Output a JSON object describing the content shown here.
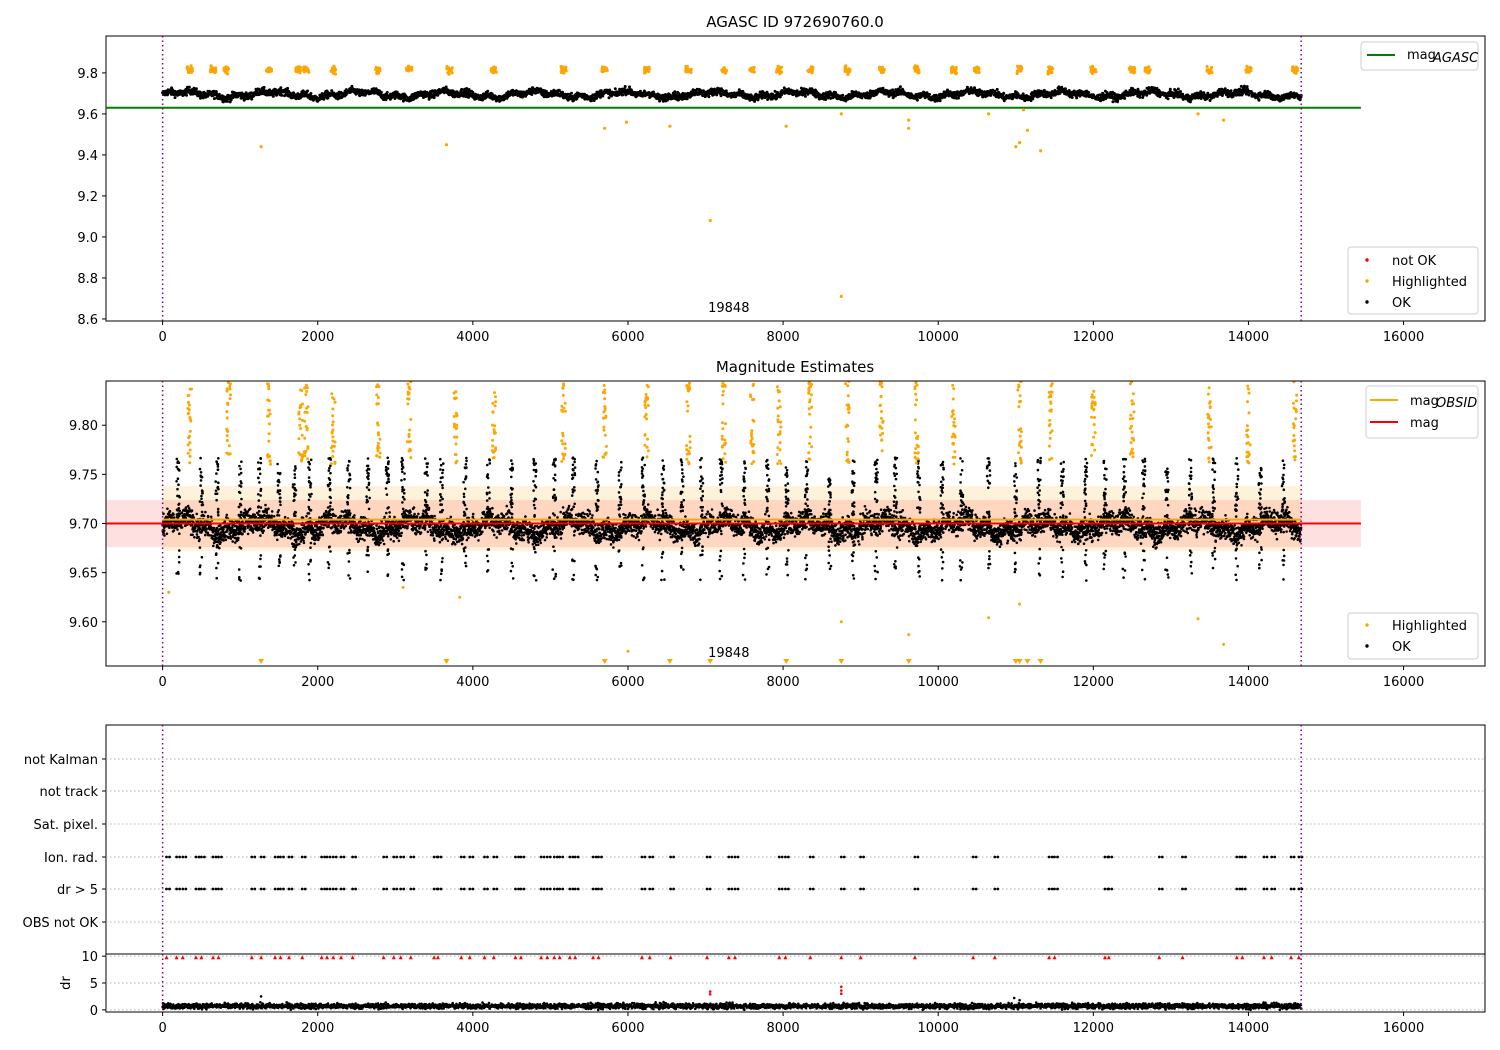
{
  "figure": {
    "width": 1500,
    "height": 1050
  },
  "chart_data": [
    {
      "type": "scatter",
      "title": "AGASC ID 972690760.0",
      "xlim": [
        -730,
        17050
      ],
      "ylim": [
        8.59,
        9.98
      ],
      "xticks": [
        0,
        2000,
        4000,
        6000,
        8000,
        10000,
        12000,
        14000,
        16000
      ],
      "xtick_labels": [
        "0",
        "2000",
        "4000",
        "6000",
        "8000",
        "10000",
        "12000",
        "14000",
        "16000"
      ],
      "yticks": [
        8.6,
        8.8,
        9.0,
        9.2,
        9.4,
        9.6,
        9.8
      ],
      "ytick_labels": [
        "8.6",
        "8.8",
        "9.0",
        "9.2",
        "9.4",
        "9.6",
        "9.8"
      ],
      "obsid_label": "19848",
      "obsid_label_x": 7300,
      "vlines": [
        0,
        14680
      ],
      "hline": {
        "name": "mag_AGASC",
        "y": 9.63,
        "x0": -730,
        "x1": 15450,
        "color": "#008000"
      },
      "ok_band": {
        "center": 9.695,
        "spread": 0.022,
        "x0": 0,
        "x1": 14680,
        "color": "#000000"
      },
      "highlighted_band": {
        "center": 9.815,
        "spread": 0.02,
        "color": "#ffa500"
      },
      "highlight_clusters_x": [
        350,
        650,
        820,
        1370,
        1750,
        1850,
        2200,
        2780,
        3180,
        3700,
        4270,
        5170,
        5700,
        6240,
        6780,
        7240,
        7600,
        7950,
        8350,
        8830,
        9270,
        9720,
        10200,
        10500,
        11050,
        11450,
        12000,
        12500,
        12700,
        13500,
        14000,
        14600
      ],
      "highlighted_outliers": [
        [
          1270,
          9.44
        ],
        [
          3660,
          9.45
        ],
        [
          5700,
          9.53
        ],
        [
          5980,
          9.56
        ],
        [
          6540,
          9.54
        ],
        [
          7060,
          9.08
        ],
        [
          8040,
          9.54
        ],
        [
          8750,
          8.71
        ],
        [
          8750,
          9.6
        ],
        [
          9620,
          9.53
        ],
        [
          9620,
          9.57
        ],
        [
          10650,
          9.6
        ],
        [
          11000,
          9.44
        ],
        [
          11050,
          9.46
        ],
        [
          11100,
          9.62
        ],
        [
          11150,
          9.52
        ],
        [
          11320,
          9.42
        ],
        [
          13350,
          9.6
        ],
        [
          13680,
          9.57
        ]
      ],
      "legend_lines": [
        {
          "label_main": "mag",
          "label_sub": "AGASC",
          "color": "#008000"
        }
      ],
      "legend_points": [
        {
          "label": "not OK",
          "color": "#ff0000"
        },
        {
          "label": "Highlighted",
          "color": "#ffa500"
        },
        {
          "label": "OK",
          "color": "#000000"
        }
      ]
    },
    {
      "type": "scatter",
      "title": "Magnitude Estimates",
      "xlim": [
        -730,
        17050
      ],
      "ylim": [
        9.555,
        9.845
      ],
      "xticks": [
        0,
        2000,
        4000,
        6000,
        8000,
        10000,
        12000,
        14000,
        16000
      ],
      "xtick_labels": [
        "0",
        "2000",
        "4000",
        "6000",
        "8000",
        "10000",
        "12000",
        "14000",
        "16000"
      ],
      "yticks": [
        9.6,
        9.65,
        9.7,
        9.75,
        9.8
      ],
      "ytick_labels": [
        "9.60",
        "9.65",
        "9.70",
        "9.75",
        "9.80"
      ],
      "obsid_label": "19848",
      "obsid_label_x": 7300,
      "vlines": [
        0,
        14680
      ],
      "mag_line": {
        "name": "mag",
        "y": 9.7,
        "x0": -730,
        "x1": 15450,
        "color": "#ff0000"
      },
      "mag_band": {
        "y0": 9.676,
        "y1": 9.724,
        "x0": -730,
        "x1": 15450,
        "color": "#ff0000"
      },
      "mag_obsid_line": {
        "name": "mag_OBSID",
        "y": 9.704,
        "x0": 0,
        "x1": 14680,
        "color": "#ffa500"
      },
      "mag_obsid_band": {
        "y0": 9.672,
        "y1": 9.738,
        "x0": 0,
        "x1": 14680,
        "color": "#ffa500"
      },
      "ok_band": {
        "center": 9.697,
        "spread": 0.016,
        "x0": 0,
        "x1": 14680,
        "color": "#000000"
      },
      "ok_spikes_x": [
        200,
        500,
        700,
        1000,
        1250,
        1500,
        1700,
        1900,
        2150,
        2400,
        2650,
        2900,
        3100,
        3400,
        3600,
        3900,
        4200,
        4500,
        4800,
        5050,
        5300,
        5600,
        5900,
        6200,
        6450,
        6700,
        6950,
        7200,
        7500,
        7800,
        8050,
        8300,
        8600,
        8900,
        9200,
        9450,
        9750,
        10050,
        10300,
        10650,
        11000,
        11300,
        11600,
        11900,
        12150,
        12400,
        12650,
        12950,
        13250,
        13550,
        13850,
        14150,
        14450
      ],
      "highlight_clusters_x": [
        350,
        850,
        1370,
        1780,
        1850,
        2200,
        2780,
        3180,
        3780,
        4270,
        5170,
        5700,
        6240,
        6780,
        7240,
        7600,
        7950,
        8350,
        8830,
        9270,
        9720,
        10200,
        11050,
        11450,
        12000,
        12500,
        13500,
        14000,
        14600
      ],
      "highlighted_outliers": [
        [
          80,
          9.63
        ],
        [
          3830,
          9.625
        ],
        [
          3100,
          9.635
        ],
        [
          6000,
          9.57
        ],
        [
          8750,
          9.6
        ],
        [
          9620,
          9.587
        ],
        [
          10650,
          9.604
        ],
        [
          11050,
          9.618
        ],
        [
          13350,
          9.603
        ],
        [
          13680,
          9.577
        ]
      ],
      "down_markers_x": [
        1270,
        3660,
        5700,
        6540,
        7060,
        8040,
        8750,
        9620,
        11000,
        11050,
        11150,
        11320
      ],
      "legend_lines": [
        {
          "label_main": "mag",
          "label_sub": "OBSID",
          "color": "#ffa500"
        },
        {
          "label_main": "mag",
          "label_sub": "",
          "color": "#ff0000"
        }
      ],
      "legend_points": [
        {
          "label": "Highlighted",
          "color": "#ffa500"
        },
        {
          "label": "OK",
          "color": "#000000"
        }
      ]
    },
    {
      "type": "scatter",
      "title": "",
      "xlim": [
        -730,
        17050
      ],
      "categories": [
        "not Kalman",
        "not track",
        "Sat. pixel.",
        "Ion. rad.",
        "dr > 5",
        "OBS not OK"
      ],
      "flag_x": [
        50,
        180,
        260,
        430,
        500,
        650,
        720,
        1150,
        1270,
        1450,
        1520,
        1630,
        1800,
        2050,
        2120,
        2200,
        2300,
        2450,
        2850,
        2980,
        3070,
        3200,
        3500,
        3550,
        3850,
        3960,
        4150,
        4270,
        4550,
        4620,
        4880,
        4960,
        5050,
        5120,
        5250,
        5320,
        5550,
        5620,
        6180,
        6280,
        6550,
        7020,
        7300,
        7380,
        7950,
        8030,
        8350,
        8750,
        9000,
        9700,
        10450,
        10730,
        11430,
        11500,
        12150,
        12200,
        12850,
        13150,
        13850,
        13920,
        14200,
        14300,
        14550,
        14650
      ],
      "vlines": [
        0,
        14680
      ]
    },
    {
      "type": "scatter",
      "title": "",
      "ylabel": "dr",
      "xlim": [
        -730,
        17050
      ],
      "ylim": [
        -0.4,
        10.4
      ],
      "xticks": [
        0,
        2000,
        4000,
        6000,
        8000,
        10000,
        12000,
        14000,
        16000
      ],
      "xtick_labels": [
        "0",
        "2000",
        "4000",
        "6000",
        "8000",
        "10000",
        "12000",
        "14000",
        "16000"
      ],
      "yticks": [
        0,
        5,
        10
      ],
      "ytick_labels": [
        "0",
        "5",
        "10"
      ],
      "ok_band": {
        "center": 0.7,
        "spread": 0.35,
        "x0": 0,
        "x1": 14680,
        "color": "#000000"
      },
      "red_markers_y": 9.8,
      "red_outliers": [
        [
          7060,
          3.4
        ],
        [
          7060,
          2.9
        ],
        [
          8750,
          4.3
        ],
        [
          8750,
          3.6
        ],
        [
          8750,
          3.0
        ]
      ],
      "vlines": [
        0,
        14680
      ]
    }
  ]
}
